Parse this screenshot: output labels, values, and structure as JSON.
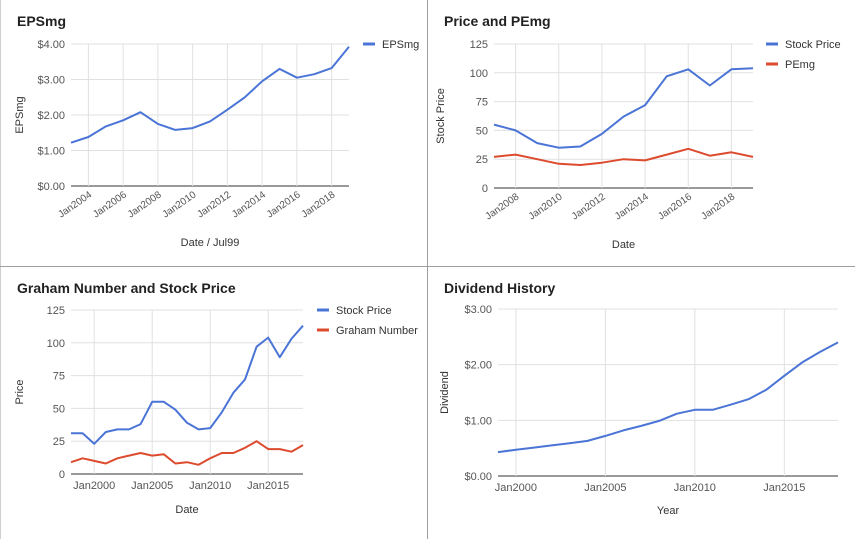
{
  "chart_data": [
    {
      "type": "line",
      "title": "EPSmg",
      "xlabel": "Date / Jul99",
      "ylabel": "EPSmg",
      "ylim": [
        0,
        4
      ],
      "y_ticks": [
        0,
        1,
        2,
        3,
        4
      ],
      "y_tick_labels": [
        "$0.00",
        "$1.00",
        "$2.00",
        "$3.00",
        "$4.00"
      ],
      "xlim": [
        2003,
        2019
      ],
      "x_ticks": [
        2004,
        2006,
        2008,
        2010,
        2012,
        2014,
        2016,
        2018
      ],
      "x_tick_labels": [
        "Jan2004",
        "Jan2006",
        "Jan2008",
        "Jan2010",
        "Jan2012",
        "Jan2014",
        "Jan2016",
        "Jan2018"
      ],
      "x_tick_rotate": true,
      "grid": true,
      "legend": "right",
      "series": [
        {
          "name": "EPSmg",
          "color": "#4a74d6",
          "x": [
            2003,
            2004,
            2005,
            2006,
            2007,
            2008,
            2009,
            2010,
            2011,
            2012,
            2013,
            2014,
            2015,
            2016,
            2017,
            2018,
            2019
          ],
          "y": [
            1.22,
            1.38,
            1.68,
            1.85,
            2.08,
            1.75,
            1.58,
            1.63,
            1.82,
            2.15,
            2.5,
            2.95,
            3.3,
            3.05,
            3.15,
            3.32,
            3.92
          ]
        }
      ]
    },
    {
      "type": "line",
      "title": "Price and PEmg",
      "xlabel": "Date",
      "ylabel": "Stock Price",
      "ylim": [
        0,
        125
      ],
      "y_ticks": [
        0,
        25,
        50,
        75,
        100,
        125
      ],
      "y_tick_labels": [
        "0",
        "25",
        "50",
        "75",
        "100",
        "125"
      ],
      "xlim": [
        2007,
        2019
      ],
      "x_ticks": [
        2008,
        2010,
        2012,
        2014,
        2016,
        2018
      ],
      "x_tick_labels": [
        "Jan2008",
        "Jan2010",
        "Jan2012",
        "Jan2014",
        "Jan2016",
        "Jan2018"
      ],
      "x_tick_rotate": true,
      "grid": true,
      "legend": "right",
      "series": [
        {
          "name": "Stock Price",
          "color": "#4a74d6",
          "x": [
            2007,
            2008,
            2009,
            2010,
            2011,
            2012,
            2013,
            2014,
            2015,
            2016,
            2017,
            2018,
            2019
          ],
          "y": [
            55,
            50,
            39,
            35,
            36,
            47,
            62,
            72,
            97,
            103,
            89,
            103,
            104
          ]
        },
        {
          "name": "PEmg",
          "color": "#dd4b2f",
          "x": [
            2007,
            2008,
            2009,
            2010,
            2011,
            2012,
            2013,
            2014,
            2015,
            2016,
            2017,
            2018,
            2019
          ],
          "y": [
            27,
            29,
            25,
            21,
            20,
            22,
            25,
            24,
            29,
            34,
            28,
            31,
            27
          ]
        }
      ]
    },
    {
      "type": "line",
      "title": "Graham Number and Stock Price",
      "xlabel": "Date",
      "ylabel": "Price",
      "ylim": [
        0,
        125
      ],
      "y_ticks": [
        0,
        25,
        50,
        75,
        100,
        125
      ],
      "y_tick_labels": [
        "0",
        "25",
        "50",
        "75",
        "100",
        "125"
      ],
      "xlim": [
        1998,
        2018
      ],
      "x_ticks": [
        2000,
        2005,
        2010,
        2015
      ],
      "x_tick_labels": [
        "Jan2000",
        "Jan2005",
        "Jan2010",
        "Jan2015"
      ],
      "x_tick_rotate": false,
      "grid": true,
      "legend": "right",
      "series": [
        {
          "name": "Stock Price",
          "color": "#4a74d6",
          "x": [
            1998,
            1999,
            2000,
            2001,
            2002,
            2003,
            2004,
            2005,
            2006,
            2007,
            2008,
            2009,
            2010,
            2011,
            2012,
            2013,
            2014,
            2015,
            2016,
            2017,
            2018
          ],
          "y": [
            31,
            31,
            23,
            32,
            34,
            34,
            38,
            55,
            55,
            49,
            39,
            34,
            35,
            47,
            62,
            72,
            97,
            104,
            89,
            103,
            113
          ]
        },
        {
          "name": "Graham Number",
          "color": "#dd4b2f",
          "x": [
            1998,
            1999,
            2000,
            2001,
            2002,
            2003,
            2004,
            2005,
            2006,
            2007,
            2008,
            2009,
            2010,
            2011,
            2012,
            2013,
            2014,
            2015,
            2016,
            2017,
            2018
          ],
          "y": [
            9,
            12,
            10,
            8,
            12,
            14,
            16,
            14,
            15,
            8,
            9,
            7,
            12,
            16,
            16,
            20,
            25,
            19,
            19,
            17,
            22
          ]
        }
      ]
    },
    {
      "type": "line",
      "title": "Dividend History",
      "xlabel": "Year",
      "ylabel": "Dividend",
      "ylim": [
        0,
        3
      ],
      "y_ticks": [
        0,
        1,
        2,
        3
      ],
      "y_tick_labels": [
        "$0.00",
        "$1.00",
        "$2.00",
        "$3.00"
      ],
      "xlim": [
        1999,
        2018
      ],
      "x_ticks": [
        2000,
        2005,
        2010,
        2015
      ],
      "x_tick_labels": [
        "Jan2000",
        "Jan2005",
        "Jan2010",
        "Jan2015"
      ],
      "x_tick_rotate": false,
      "grid": true,
      "legend": "none",
      "series": [
        {
          "color": "#4a74d6",
          "x": [
            1999,
            2000,
            2001,
            2002,
            2003,
            2004,
            2005,
            2006,
            2007,
            2008,
            2009,
            2010,
            2011,
            2012,
            2013,
            2014,
            2015,
            2016,
            2017,
            2018
          ],
          "y": [
            0.43,
            0.47,
            0.51,
            0.55,
            0.59,
            0.63,
            0.72,
            0.82,
            0.9,
            0.99,
            1.12,
            1.19,
            1.19,
            1.28,
            1.38,
            1.55,
            1.8,
            2.04,
            2.23,
            2.4
          ]
        }
      ]
    }
  ]
}
